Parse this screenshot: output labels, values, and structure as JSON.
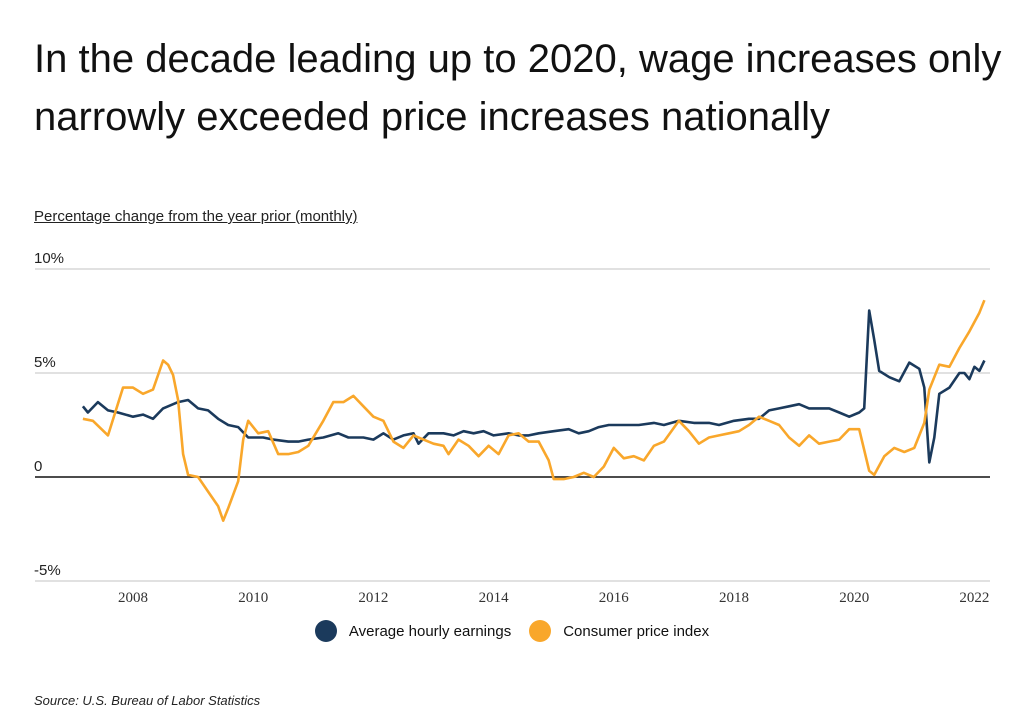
{
  "title": "In the decade leading up to 2020, wage increases only narrowly exceeded price increases nationally",
  "source": "Source:  U.S. Bureau of Labor Statistics",
  "colors": {
    "earnings": "#1b3a5c",
    "cpi": "#f9a72b"
  },
  "chart_data": {
    "type": "line",
    "title": "",
    "ylabel": "Percentage change from the year prior (monthly)",
    "xlabel": "",
    "ylim": [
      -5,
      10
    ],
    "xlim": [
      "2007-01",
      "2022-04"
    ],
    "yticks": [
      {
        "value": 10,
        "label": "10%"
      },
      {
        "value": 5,
        "label": "5%"
      },
      {
        "value": 0,
        "label": "0"
      },
      {
        "value": -5,
        "label": "-5%"
      }
    ],
    "xticks": [
      "2008",
      "2010",
      "2012",
      "2014",
      "2016",
      "2018",
      "2020",
      "2022"
    ],
    "grid": true,
    "legend": "bottom",
    "series": [
      {
        "name": "Average hourly earnings",
        "color": "#1b3a5c",
        "points": [
          [
            "2007-03",
            3.4
          ],
          [
            "2007-04",
            3.1
          ],
          [
            "2007-06",
            3.6
          ],
          [
            "2007-08",
            3.2
          ],
          [
            "2007-10",
            3.1
          ],
          [
            "2008-01",
            2.9
          ],
          [
            "2008-03",
            3.0
          ],
          [
            "2008-05",
            2.8
          ],
          [
            "2008-07",
            3.3
          ],
          [
            "2008-10",
            3.6
          ],
          [
            "2008-12",
            3.7
          ],
          [
            "2009-02",
            3.3
          ],
          [
            "2009-04",
            3.2
          ],
          [
            "2009-06",
            2.8
          ],
          [
            "2009-08",
            2.5
          ],
          [
            "2009-10",
            2.4
          ],
          [
            "2009-12",
            1.9
          ],
          [
            "2010-03",
            1.9
          ],
          [
            "2010-05",
            1.8
          ],
          [
            "2010-08",
            1.7
          ],
          [
            "2010-10",
            1.7
          ],
          [
            "2010-12",
            1.8
          ],
          [
            "2011-03",
            1.9
          ],
          [
            "2011-06",
            2.1
          ],
          [
            "2011-08",
            1.9
          ],
          [
            "2011-11",
            1.9
          ],
          [
            "2012-01",
            1.8
          ],
          [
            "2012-03",
            2.1
          ],
          [
            "2012-05",
            1.8
          ],
          [
            "2012-07",
            2.0
          ],
          [
            "2012-09",
            2.1
          ],
          [
            "2012-10",
            1.6
          ],
          [
            "2012-12",
            2.1
          ],
          [
            "2013-03",
            2.1
          ],
          [
            "2013-05",
            2.0
          ],
          [
            "2013-07",
            2.2
          ],
          [
            "2013-09",
            2.1
          ],
          [
            "2013-11",
            2.2
          ],
          [
            "2014-01",
            2.0
          ],
          [
            "2014-04",
            2.1
          ],
          [
            "2014-06",
            2.0
          ],
          [
            "2014-08",
            2.0
          ],
          [
            "2014-10",
            2.1
          ],
          [
            "2015-01",
            2.2
          ],
          [
            "2015-04",
            2.3
          ],
          [
            "2015-06",
            2.1
          ],
          [
            "2015-08",
            2.2
          ],
          [
            "2015-10",
            2.4
          ],
          [
            "2015-12",
            2.5
          ],
          [
            "2016-03",
            2.5
          ],
          [
            "2016-06",
            2.5
          ],
          [
            "2016-09",
            2.6
          ],
          [
            "2016-11",
            2.5
          ],
          [
            "2017-02",
            2.7
          ],
          [
            "2017-05",
            2.6
          ],
          [
            "2017-08",
            2.6
          ],
          [
            "2017-10",
            2.5
          ],
          [
            "2018-01",
            2.7
          ],
          [
            "2018-04",
            2.8
          ],
          [
            "2018-06",
            2.8
          ],
          [
            "2018-08",
            3.2
          ],
          [
            "2018-10",
            3.3
          ],
          [
            "2018-12",
            3.4
          ],
          [
            "2019-02",
            3.5
          ],
          [
            "2019-04",
            3.3
          ],
          [
            "2019-06",
            3.3
          ],
          [
            "2019-08",
            3.3
          ],
          [
            "2019-10",
            3.1
          ],
          [
            "2019-12",
            2.9
          ],
          [
            "2020-02",
            3.1
          ],
          [
            "2020-03",
            3.3
          ],
          [
            "2020-04",
            8.0
          ],
          [
            "2020-05",
            6.6
          ],
          [
            "2020-06",
            5.1
          ],
          [
            "2020-08",
            4.8
          ],
          [
            "2020-10",
            4.6
          ],
          [
            "2020-12",
            5.5
          ],
          [
            "2021-02",
            5.2
          ],
          [
            "2021-03",
            4.3
          ],
          [
            "2021-04",
            0.7
          ],
          [
            "2021-05",
            1.9
          ],
          [
            "2021-06",
            4.0
          ],
          [
            "2021-08",
            4.3
          ],
          [
            "2021-10",
            5.0
          ],
          [
            "2021-11",
            5.0
          ],
          [
            "2021-12",
            4.7
          ],
          [
            "2022-01",
            5.3
          ],
          [
            "2022-02",
            5.1
          ],
          [
            "2022-03",
            5.6
          ]
        ]
      },
      {
        "name": "Consumer price index",
        "color": "#f9a72b",
        "points": [
          [
            "2007-03",
            2.8
          ],
          [
            "2007-05",
            2.7
          ],
          [
            "2007-08",
            2.0
          ],
          [
            "2007-11",
            4.3
          ],
          [
            "2008-01",
            4.3
          ],
          [
            "2008-03",
            4.0
          ],
          [
            "2008-05",
            4.2
          ],
          [
            "2008-07",
            5.6
          ],
          [
            "2008-08",
            5.4
          ],
          [
            "2008-09",
            4.9
          ],
          [
            "2008-10",
            3.7
          ],
          [
            "2008-11",
            1.1
          ],
          [
            "2008-12",
            0.1
          ],
          [
            "2009-02",
            0.0
          ],
          [
            "2009-04",
            -0.7
          ],
          [
            "2009-06",
            -1.4
          ],
          [
            "2009-07",
            -2.1
          ],
          [
            "2009-08",
            -1.5
          ],
          [
            "2009-10",
            -0.2
          ],
          [
            "2009-11",
            1.8
          ],
          [
            "2009-12",
            2.7
          ],
          [
            "2010-02",
            2.1
          ],
          [
            "2010-04",
            2.2
          ],
          [
            "2010-06",
            1.1
          ],
          [
            "2010-08",
            1.1
          ],
          [
            "2010-10",
            1.2
          ],
          [
            "2010-12",
            1.5
          ],
          [
            "2011-03",
            2.7
          ],
          [
            "2011-05",
            3.6
          ],
          [
            "2011-07",
            3.6
          ],
          [
            "2011-09",
            3.9
          ],
          [
            "2011-11",
            3.4
          ],
          [
            "2012-01",
            2.9
          ],
          [
            "2012-03",
            2.7
          ],
          [
            "2012-05",
            1.7
          ],
          [
            "2012-07",
            1.4
          ],
          [
            "2012-09",
            2.0
          ],
          [
            "2012-11",
            1.8
          ],
          [
            "2013-01",
            1.6
          ],
          [
            "2013-03",
            1.5
          ],
          [
            "2013-04",
            1.1
          ],
          [
            "2013-06",
            1.8
          ],
          [
            "2013-08",
            1.5
          ],
          [
            "2013-10",
            1.0
          ],
          [
            "2013-12",
            1.5
          ],
          [
            "2014-02",
            1.1
          ],
          [
            "2014-04",
            2.0
          ],
          [
            "2014-06",
            2.1
          ],
          [
            "2014-08",
            1.7
          ],
          [
            "2014-10",
            1.7
          ],
          [
            "2014-12",
            0.8
          ],
          [
            "2015-01",
            -0.1
          ],
          [
            "2015-03",
            -0.1
          ],
          [
            "2015-05",
            0.0
          ],
          [
            "2015-07",
            0.2
          ],
          [
            "2015-09",
            0.0
          ],
          [
            "2015-11",
            0.5
          ],
          [
            "2016-01",
            1.4
          ],
          [
            "2016-03",
            0.9
          ],
          [
            "2016-05",
            1.0
          ],
          [
            "2016-07",
            0.8
          ],
          [
            "2016-09",
            1.5
          ],
          [
            "2016-11",
            1.7
          ],
          [
            "2017-02",
            2.7
          ],
          [
            "2017-04",
            2.2
          ],
          [
            "2017-06",
            1.6
          ],
          [
            "2017-08",
            1.9
          ],
          [
            "2017-10",
            2.0
          ],
          [
            "2017-12",
            2.1
          ],
          [
            "2018-02",
            2.2
          ],
          [
            "2018-04",
            2.5
          ],
          [
            "2018-06",
            2.9
          ],
          [
            "2018-08",
            2.7
          ],
          [
            "2018-10",
            2.5
          ],
          [
            "2018-12",
            1.9
          ],
          [
            "2019-02",
            1.5
          ],
          [
            "2019-04",
            2.0
          ],
          [
            "2019-06",
            1.6
          ],
          [
            "2019-08",
            1.7
          ],
          [
            "2019-10",
            1.8
          ],
          [
            "2019-12",
            2.3
          ],
          [
            "2020-02",
            2.3
          ],
          [
            "2020-04",
            0.3
          ],
          [
            "2020-05",
            0.1
          ],
          [
            "2020-07",
            1.0
          ],
          [
            "2020-09",
            1.4
          ],
          [
            "2020-11",
            1.2
          ],
          [
            "2021-01",
            1.4
          ],
          [
            "2021-03",
            2.6
          ],
          [
            "2021-04",
            4.2
          ],
          [
            "2021-06",
            5.4
          ],
          [
            "2021-08",
            5.3
          ],
          [
            "2021-10",
            6.2
          ],
          [
            "2021-12",
            7.0
          ],
          [
            "2022-02",
            7.9
          ],
          [
            "2022-03",
            8.5
          ]
        ]
      }
    ]
  }
}
